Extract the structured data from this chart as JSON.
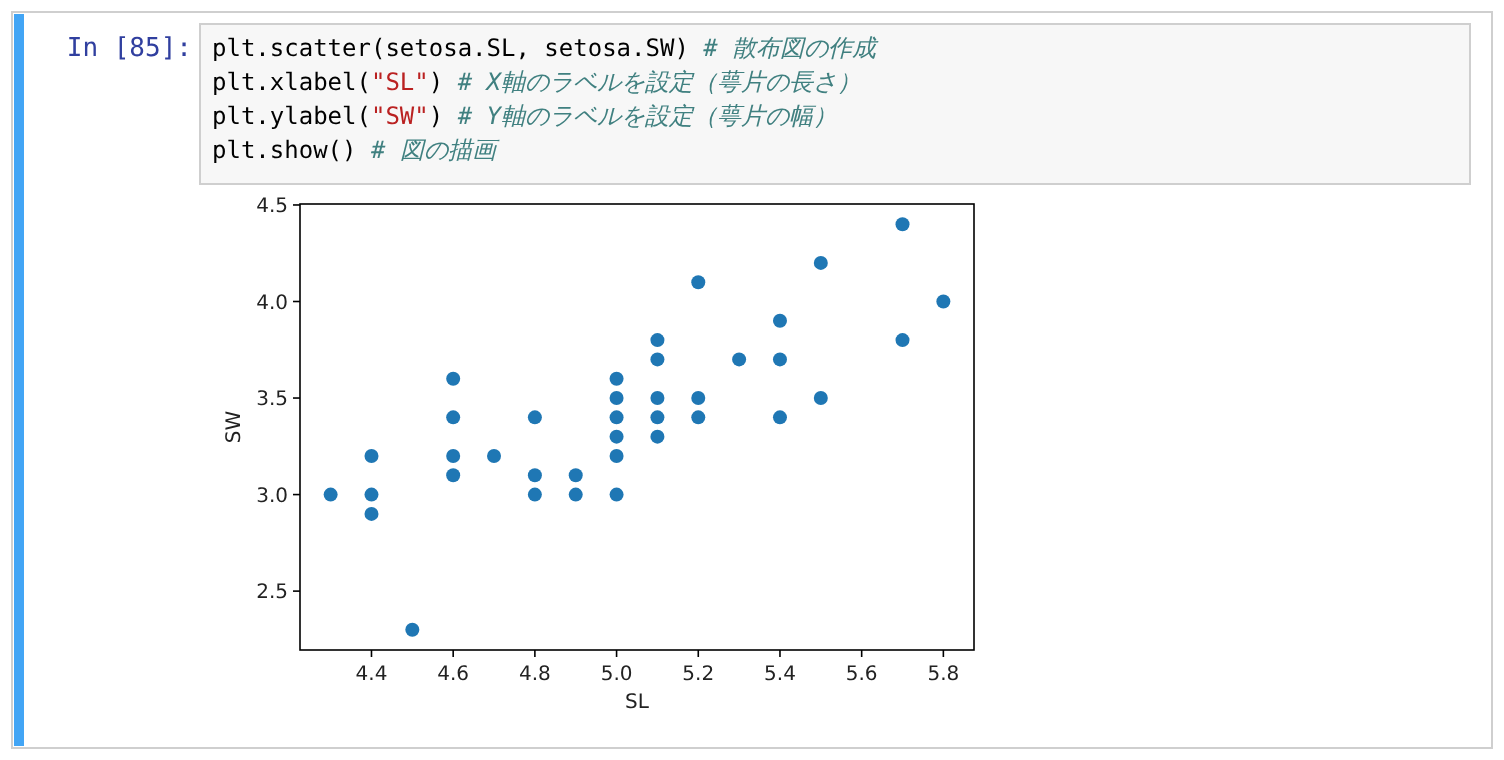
{
  "chart_data": {
    "type": "scatter",
    "xlabel": "SL",
    "ylabel": "SW",
    "color": "#1f77b4",
    "marker": "circle",
    "grid": false,
    "x": [
      4.3,
      4.4,
      4.4,
      4.4,
      4.5,
      4.6,
      4.6,
      4.6,
      4.6,
      4.7,
      4.8,
      4.8,
      4.8,
      4.9,
      4.9,
      5.0,
      5.0,
      5.0,
      5.0,
      5.0,
      5.0,
      5.1,
      5.1,
      5.1,
      5.1,
      5.1,
      5.2,
      5.2,
      5.2,
      5.3,
      5.4,
      5.4,
      5.4,
      5.5,
      5.5,
      5.7,
      5.7,
      5.8
    ],
    "values": [
      3.0,
      3.2,
      3.0,
      2.9,
      2.3,
      3.6,
      3.4,
      3.2,
      3.1,
      3.2,
      3.4,
      3.1,
      3.0,
      3.1,
      3.0,
      3.6,
      3.5,
      3.4,
      3.3,
      3.2,
      3.0,
      3.8,
      3.7,
      3.5,
      3.4,
      3.3,
      4.1,
      3.5,
      3.4,
      3.7,
      3.9,
      3.7,
      3.4,
      4.2,
      3.5,
      4.4,
      3.8,
      4.0
    ],
    "xlim": [
      4.225,
      5.875
    ],
    "ylim": [
      2.195,
      4.505
    ],
    "xticks": [
      4.4,
      4.6,
      4.8,
      {
        "value": 5,
        "label": "5.0"
      },
      5.2,
      5.4,
      5.6,
      5.8
    ],
    "yticks": [
      2.5,
      {
        "value": 3,
        "label": "3.0"
      },
      3.5,
      {
        "value": 4,
        "label": "4.0"
      },
      4.5
    ],
    "annotations": [
      "In [85]:",
      "plt.scatter(setosa.SL, setosa.SW) # 散布図の作成",
      "plt.xlabel(\"SL\") # X軸のラベルを設定（萼片の長さ）",
      "plt.ylabel(\"SW\") # Y軸のラベルを設定（萼片の幅）",
      "plt.show() # 図の描画"
    ]
  }
}
